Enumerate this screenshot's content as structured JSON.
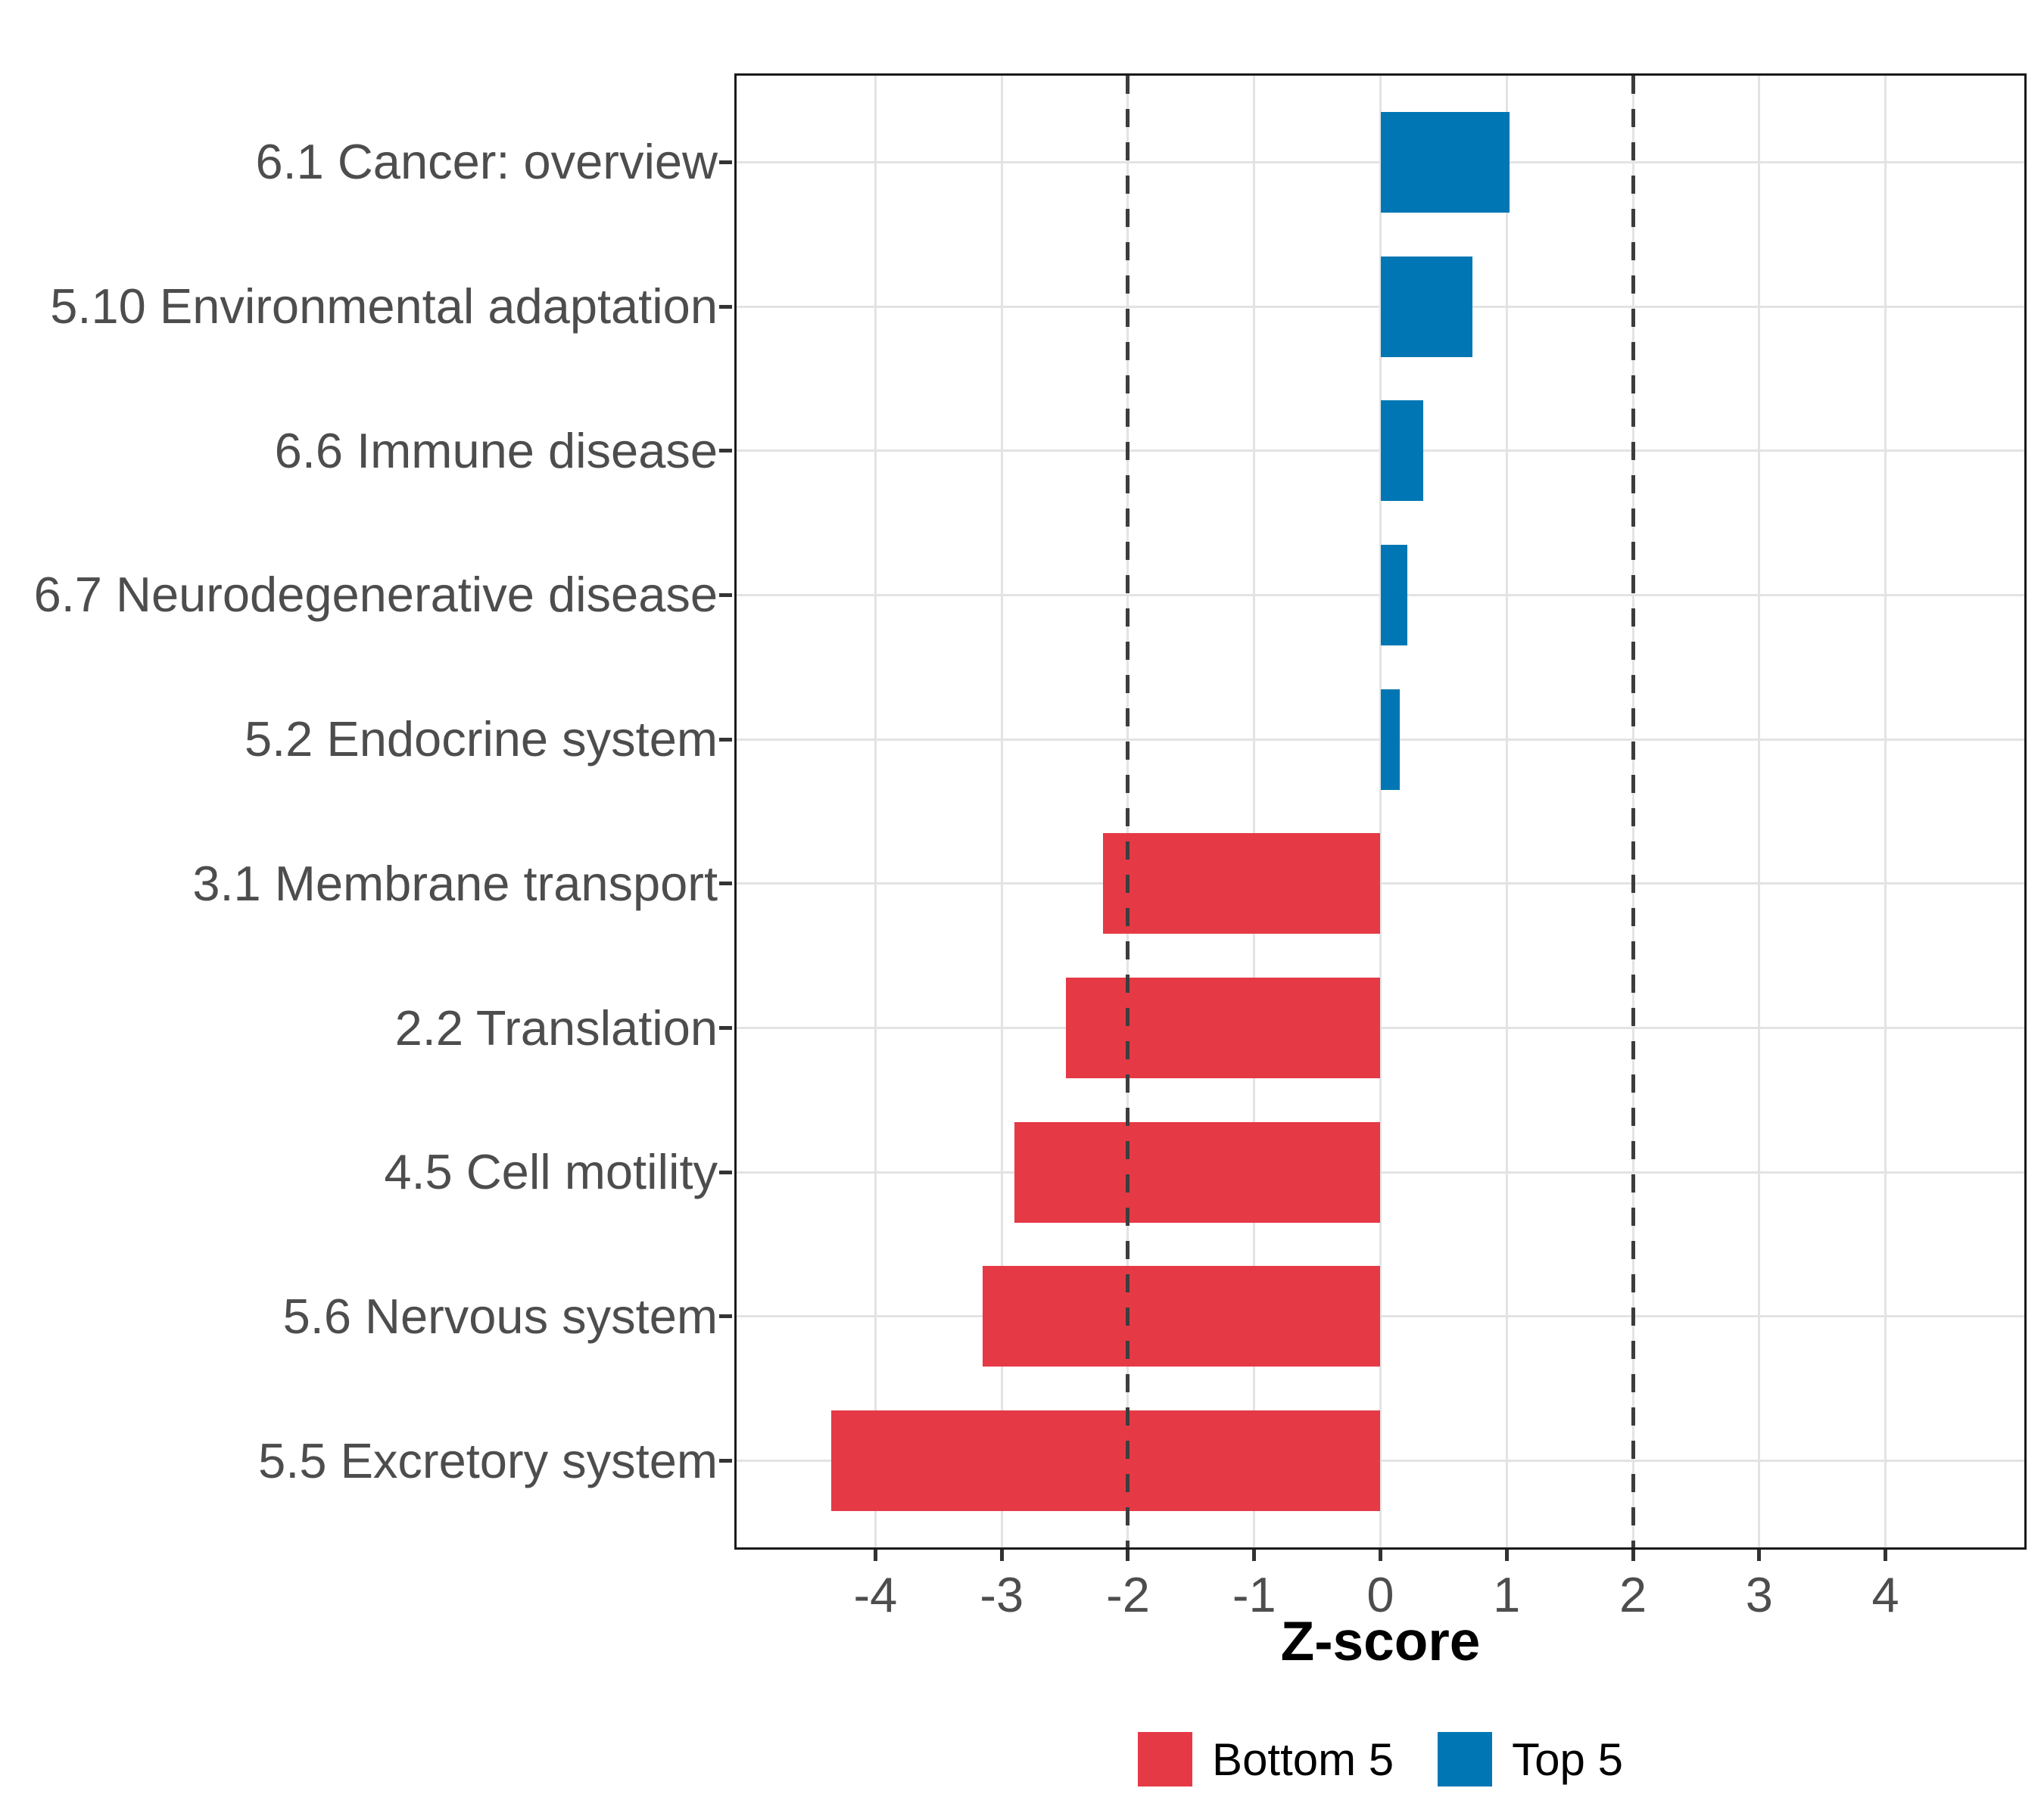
{
  "figure": {
    "legend": {
      "items": [
        {
          "label": "Bottom 5",
          "color": "#E53946"
        },
        {
          "label": "Top 5",
          "color": "#0077B4"
        }
      ]
    }
  },
  "chart_data": {
    "type": "bar",
    "orientation": "horizontal",
    "title": "",
    "xlabel": "Z-score",
    "ylabel": "",
    "categories": [
      "6.1 Cancer: overview",
      "5.10 Environmental adaptation",
      "6.6 Immune disease",
      "6.7 Neurodegenerative disease",
      "5.2 Endocrine system",
      "3.1 Membrane transport",
      "2.2 Translation",
      "4.5 Cell motility",
      "5.6 Nervous system",
      "5.5 Excretory system"
    ],
    "values": [
      1.02,
      0.73,
      0.34,
      0.21,
      0.15,
      -2.2,
      -2.49,
      -2.9,
      -3.15,
      -4.35
    ],
    "groups": [
      "Top 5",
      "Top 5",
      "Top 5",
      "Top 5",
      "Top 5",
      "Bottom 5",
      "Bottom 5",
      "Bottom 5",
      "Bottom 5",
      "Bottom 5"
    ],
    "group_colors": {
      "Bottom 5": "#E53946",
      "Top 5": "#0077B4"
    },
    "xlim": [
      -5.1,
      5.1
    ],
    "xticks": [
      -4,
      -3,
      -2,
      -1,
      0,
      1,
      2,
      3,
      4
    ],
    "reference_lines": [
      -2,
      2
    ],
    "reference_line_style": "dashed",
    "reference_line_color": "#3d3d3d",
    "bar_width_fraction": 0.7,
    "grid": "major-x-and-category-rows",
    "gridline_color": "#e3e3e3",
    "axis_text_color": "#4d4d4d",
    "legend_position": "bottom"
  }
}
